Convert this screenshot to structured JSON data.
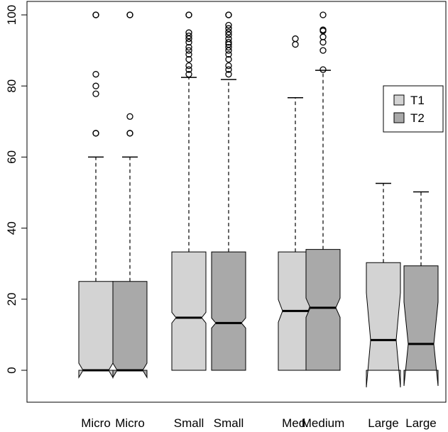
{
  "chart_data": {
    "type": "boxplot",
    "notched": true,
    "ylim": [
      -8,
      104
    ],
    "yticks": [
      0,
      20,
      40,
      60,
      80,
      100
    ],
    "ytick_labels": [
      "0",
      "20",
      "40",
      "60",
      "80",
      "100"
    ],
    "legend": {
      "placement": "right",
      "entries": [
        {
          "label": "T1",
          "color": "#d3d3d3"
        },
        {
          "label": "T2",
          "color": "#a9a9a9"
        }
      ]
    },
    "boxes": [
      {
        "label": "Micro",
        "group": "T1",
        "color": "#d3d3d3",
        "q1": 0,
        "median": 0,
        "q3": 25,
        "whisker_low": 0,
        "whisker_high": 60,
        "notch_low": -2,
        "notch_high": 2,
        "outliers": [
          100,
          100,
          83.3,
          80,
          77.8,
          66.7,
          66.7
        ]
      },
      {
        "label": "Micro",
        "group": "T2",
        "color": "#a9a9a9",
        "q1": 0,
        "median": 0,
        "q3": 25,
        "whisker_low": 0,
        "whisker_high": 60,
        "notch_low": -2,
        "notch_high": 2,
        "outliers": [
          100,
          100,
          71.4,
          66.7,
          66.7
        ]
      },
      {
        "label": "Small",
        "group": "T1",
        "color": "#d3d3d3",
        "q1": 0,
        "median": 14.8,
        "q3": 33.3,
        "whisker_low": 0,
        "whisker_high": 82.4,
        "notch_low": 13.3,
        "notch_high": 16.3,
        "outliers": [
          83.3,
          84.6,
          85.7,
          87.5,
          88.9,
          90,
          90.9,
          92.3,
          93.3,
          94.1,
          95,
          100,
          100
        ]
      },
      {
        "label": "Small",
        "group": "T2",
        "color": "#a9a9a9",
        "q1": 0,
        "median": 13.3,
        "q3": 33.3,
        "whisker_low": 0,
        "whisker_high": 81.8,
        "notch_low": 11.9,
        "notch_high": 14.7,
        "outliers": [
          83.3,
          84.6,
          85.7,
          87.5,
          88.9,
          90,
          90.9,
          91.7,
          92.3,
          93.3,
          94.4,
          95.2,
          96.2,
          97.1,
          100,
          100
        ]
      },
      {
        "label": "Med.",
        "group": "T1",
        "color": "#d3d3d3",
        "q1": 0,
        "median": 16.7,
        "q3": 33.3,
        "whisker_low": 0,
        "whisker_high": 76.7,
        "notch_low": 13.5,
        "notch_high": 19.9,
        "outliers": [
          91.7,
          93.3
        ]
      },
      {
        "label": "Medium",
        "group": "T2",
        "color": "#a9a9a9",
        "q1": 0,
        "median": 17.6,
        "q3": 34,
        "whisker_low": 0,
        "whisker_high": 84.4,
        "notch_low": 14.9,
        "notch_high": 20.3,
        "outliers": [
          84.6,
          90,
          92.3,
          93.8,
          95.5,
          95.8,
          100
        ]
      },
      {
        "label": "Large",
        "group": "T1",
        "color": "#d3d3d3",
        "q1": 0,
        "median": 8.5,
        "q3": 30.3,
        "whisker_low": 0,
        "whisker_high": 52.6,
        "notch_low": -4.8,
        "notch_high": 21.8,
        "outliers": []
      },
      {
        "label": "Large",
        "group": "T2",
        "color": "#a9a9a9",
        "q1": 0,
        "median": 7.4,
        "q3": 29.4,
        "whisker_low": 0,
        "whisker_high": 50.2,
        "notch_low": -4.4,
        "notch_high": 19.2,
        "outliers": []
      }
    ]
  }
}
